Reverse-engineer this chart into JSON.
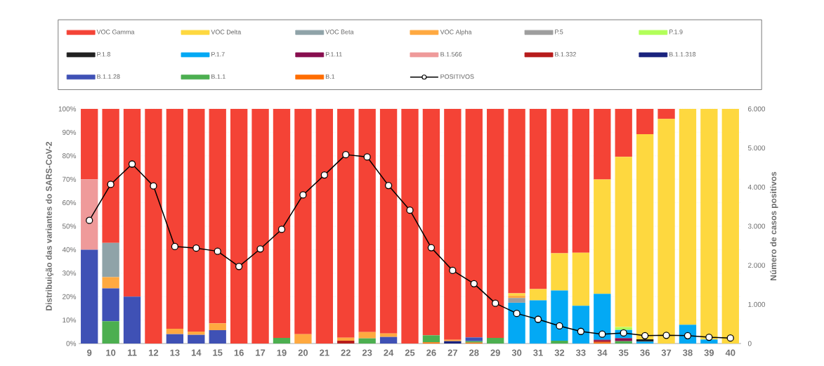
{
  "chart_data": {
    "type": "bar",
    "stacked": true,
    "ylabel": "Distribuição das variantes do SARS-CoV-2",
    "y2label": "Número de casos positivos",
    "categories": [
      "9",
      "10",
      "11",
      "12",
      "13",
      "14",
      "15",
      "16",
      "17",
      "19",
      "20",
      "21",
      "22",
      "23",
      "24",
      "25",
      "26",
      "27",
      "28",
      "29",
      "30",
      "31",
      "32",
      "33",
      "34",
      "35",
      "36",
      "37",
      "38",
      "39",
      "40"
    ],
    "series": [
      {
        "name": "B.1",
        "color": "#ff6d00",
        "values": [
          0,
          0,
          0,
          0,
          0,
          0,
          0,
          0,
          0,
          0,
          0,
          0,
          0,
          0,
          0,
          0,
          0.5,
          0,
          0.4,
          0,
          0,
          0,
          0,
          0,
          0.5,
          0,
          0,
          0,
          0,
          0,
          0
        ]
      },
      {
        "name": "B.1.1",
        "color": "#4caf50",
        "values": [
          0,
          9.5,
          0,
          0,
          0,
          0,
          0,
          0,
          0,
          2.4,
          0,
          0,
          0,
          2.2,
          0,
          0,
          3.0,
          0,
          0.6,
          2.4,
          0,
          0,
          1.2,
          0,
          0,
          1.0,
          0,
          0,
          0,
          0,
          0
        ]
      },
      {
        "name": "B.1.1.28",
        "color": "#3f51b5",
        "values": [
          40,
          14,
          20,
          0,
          4.0,
          3.7,
          5.7,
          0,
          0,
          0,
          0,
          0,
          0,
          0,
          2.8,
          0,
          0,
          0,
          1.6,
          0,
          0,
          0,
          0,
          0,
          0,
          0,
          0,
          0,
          0,
          0,
          0
        ]
      },
      {
        "name": "B.1.1.318",
        "color": "#1a237e",
        "values": [
          0,
          0,
          0,
          0,
          0,
          0,
          0,
          0,
          0,
          0,
          0,
          0,
          0,
          0,
          0,
          0,
          0,
          1.0,
          0,
          0,
          0,
          0,
          0,
          0,
          0,
          0,
          0,
          0,
          0,
          0,
          0
        ]
      },
      {
        "name": "B.1.332",
        "color": "#b71c1c",
        "values": [
          0,
          0,
          0,
          0,
          0,
          0,
          0,
          0,
          0,
          0,
          0,
          0,
          1.2,
          0,
          0,
          0,
          0,
          0,
          0,
          0,
          0,
          0,
          0,
          0,
          0.6,
          0,
          0,
          0,
          0,
          0,
          0
        ]
      },
      {
        "name": "B.1.566",
        "color": "#ef9a9a",
        "values": [
          30,
          0,
          0,
          0,
          0,
          0,
          0,
          0,
          0,
          0,
          0,
          0,
          0,
          0,
          0,
          0,
          0,
          0,
          0,
          0,
          0,
          0,
          0,
          0,
          0,
          0,
          0,
          0,
          0,
          0,
          0
        ]
      },
      {
        "name": "P.1.11",
        "color": "#880e4f",
        "values": [
          0,
          0,
          0,
          0,
          0,
          0,
          0,
          0,
          0,
          0,
          0,
          0,
          0,
          0,
          0,
          0,
          0,
          0,
          0,
          0,
          0,
          0,
          0,
          0,
          0.5,
          1.3,
          0,
          0,
          0,
          0,
          0
        ]
      },
      {
        "name": "P.1.7",
        "color": "#03a9f4",
        "values": [
          0,
          0,
          0,
          0,
          0,
          0,
          0,
          0,
          0,
          0,
          0,
          0,
          0,
          0,
          0,
          0,
          0,
          0,
          0,
          0,
          17.4,
          18.4,
          21.4,
          16.1,
          19.6,
          3.5,
          0.8,
          0,
          8.0,
          1.7,
          0
        ]
      },
      {
        "name": "P.1.8",
        "color": "#212121",
        "values": [
          0,
          0,
          0,
          0,
          0,
          0,
          0,
          0,
          0,
          0,
          0,
          0,
          0,
          0,
          0,
          0,
          0,
          0,
          0,
          0,
          0,
          0,
          0,
          0,
          0,
          0,
          1.0,
          0,
          0,
          0,
          0
        ]
      },
      {
        "name": "P.1.9",
        "color": "#b2ff59",
        "values": [
          0,
          0,
          0,
          0,
          0,
          0,
          0,
          0,
          0,
          0,
          0,
          0,
          0,
          0,
          0,
          0,
          0,
          0,
          0,
          0,
          0,
          0,
          0,
          0,
          0,
          1.2,
          0,
          0,
          0,
          0,
          0
        ]
      },
      {
        "name": "P.5",
        "color": "#9e9e9e",
        "values": [
          0,
          0,
          0,
          0,
          0,
          0,
          0,
          0,
          0,
          0,
          0,
          0,
          0,
          0,
          0,
          0,
          0,
          0,
          0,
          0,
          2.0,
          0,
          0,
          0,
          0,
          0,
          0,
          0,
          0,
          0,
          0
        ]
      },
      {
        "name": "VOC Alpha",
        "color": "#ffa940",
        "values": [
          0,
          4.8,
          0,
          0,
          2.3,
          1.4,
          2.9,
          0,
          0,
          0,
          4.0,
          0,
          1.3,
          2.7,
          1.5,
          0,
          0,
          0.6,
          0,
          0,
          1.0,
          0,
          0,
          0,
          0,
          0,
          0,
          0,
          0,
          0,
          0
        ]
      },
      {
        "name": "VOC Beta",
        "color": "#8fa3a8",
        "values": [
          0,
          14.6,
          0,
          0,
          0,
          0,
          0,
          0,
          0,
          0,
          0,
          0,
          0,
          0,
          0,
          0,
          0,
          0,
          0,
          0,
          0,
          0,
          0,
          0,
          0,
          0,
          0,
          0,
          0,
          0,
          0
        ]
      },
      {
        "name": "VOC Delta",
        "color": "#fed83f",
        "values": [
          0,
          0,
          0,
          0,
          0,
          0,
          0,
          0,
          0,
          0,
          0,
          0,
          0,
          0,
          0,
          0,
          0,
          0,
          0,
          0,
          1.0,
          4.8,
          15.9,
          22.6,
          48.7,
          72.6,
          87.4,
          95.7,
          92,
          98.3,
          100
        ]
      },
      {
        "name": "VOC Gamma",
        "color": "#f44336",
        "values": [
          30,
          57.1,
          80,
          100,
          93.7,
          94.9,
          91.4,
          100,
          100,
          97.6,
          96,
          100,
          97.5,
          95.1,
          95.7,
          100,
          96.5,
          98.4,
          97.4,
          97.6,
          78.6,
          76.8,
          61.5,
          61.3,
          30.1,
          20.4,
          10.8,
          4.3,
          0,
          0,
          0
        ]
      },
      {
        "name": "POSITIVOS",
        "type": "line",
        "axis": "y2",
        "color": "#000000",
        "marker": "circle",
        "line_style": "solid",
        "values": [
          3150,
          4070,
          4590,
          4030,
          2480,
          2440,
          2360,
          1970,
          2420,
          2920,
          3800,
          4310,
          4830,
          4770,
          4040,
          3410,
          2450,
          1870,
          1530,
          1030,
          770,
          620,
          450,
          310,
          240,
          270,
          200,
          210,
          200,
          160,
          140
        ]
      }
    ],
    "ylim": [
      0,
      100
    ],
    "yticks": [
      {
        "value": 0,
        "label": "0%"
      },
      {
        "value": 10,
        "label": "10%"
      },
      {
        "value": 20,
        "label": "20%"
      },
      {
        "value": 30,
        "label": "30%"
      },
      {
        "value": 40,
        "label": "40%"
      },
      {
        "value": 50,
        "label": "50%"
      },
      {
        "value": 60,
        "label": "60%"
      },
      {
        "value": 70,
        "label": "70%"
      },
      {
        "value": 80,
        "label": "80%"
      },
      {
        "value": 90,
        "label": "90%"
      },
      {
        "value": 100,
        "label": "100%"
      }
    ],
    "y2lim": [
      0,
      6000
    ],
    "y2ticks": [
      0,
      {
        "value": 1000,
        "label": "1.000"
      },
      {
        "value": 2000,
        "label": "2.000"
      },
      {
        "value": 3000,
        "label": "3.000"
      },
      {
        "value": 4000,
        "label": "4.000"
      },
      {
        "value": 5000,
        "label": "5.000"
      },
      {
        "value": 6000,
        "label": "6.000"
      }
    ],
    "grid": "y",
    "legend": "top"
  }
}
